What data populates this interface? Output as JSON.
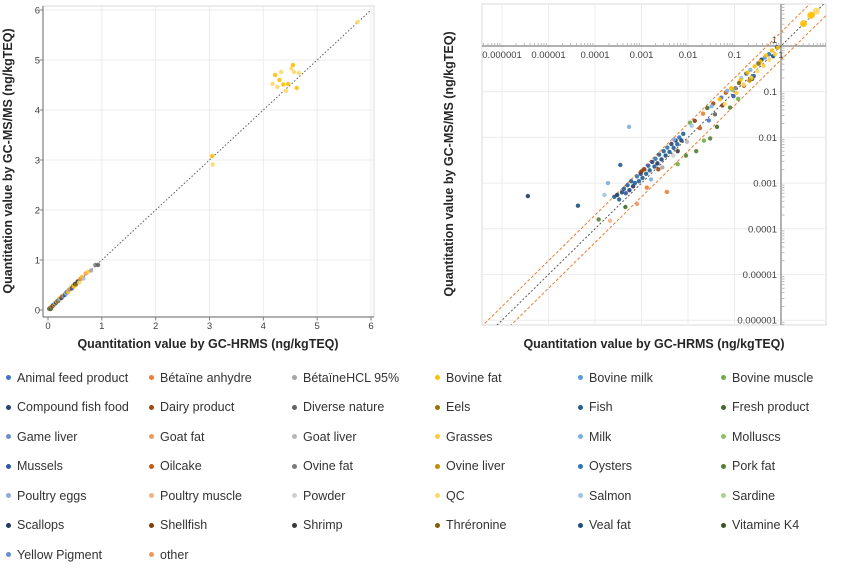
{
  "chart_data": [
    {
      "type": "scatter",
      "scale": "linear",
      "x_title": "Quantitation value by GC-HRMS (ng/kgTEQ)",
      "y_title": "Quantitation value by GC-MS/MS (ng/kgTEQ)",
      "x_ticks": [
        "0",
        "1",
        "2",
        "3",
        "4",
        "5",
        "6"
      ],
      "y_ticks": [
        "0",
        "1",
        "2",
        "3",
        "4",
        "5",
        "6"
      ],
      "xlim": [
        0,
        6
      ],
      "ylim": [
        0,
        6
      ],
      "grid": true,
      "identity_line_color": "#595959",
      "points": [
        [
          5.75,
          5.76,
          "#FFD966"
        ],
        [
          3.05,
          3.08,
          "#FFC000"
        ],
        [
          3.06,
          2.91,
          "#FFD966"
        ],
        [
          4.17,
          4.52,
          "#FFD966"
        ],
        [
          4.22,
          4.7,
          "#FFC000"
        ],
        [
          4.26,
          4.46,
          "#FFD966"
        ],
        [
          4.3,
          4.6,
          "#FFC000"
        ],
        [
          4.33,
          4.76,
          "#FFD966"
        ],
        [
          4.37,
          4.51,
          "#FFC000"
        ],
        [
          4.42,
          4.38,
          "#FFD966"
        ],
        [
          4.46,
          4.52,
          "#FFC000"
        ],
        [
          4.52,
          4.83,
          "#FFD966"
        ],
        [
          4.55,
          4.9,
          "#FFC000"
        ],
        [
          4.57,
          4.76,
          "#FFD966"
        ],
        [
          4.62,
          4.44,
          "#FFC000"
        ],
        [
          4.66,
          4.74,
          "#FFD966"
        ],
        [
          0.02,
          0.02,
          "#ED7D31"
        ],
        [
          0.03,
          0.03,
          "#264478"
        ],
        [
          0.04,
          0.03,
          "#70AD47"
        ],
        [
          0.05,
          0.05,
          "#9E480E"
        ],
        [
          0.05,
          0.02,
          "#43682B"
        ],
        [
          0.06,
          0.06,
          "#4472C4"
        ],
        [
          0.07,
          0.07,
          "#FFC000"
        ],
        [
          0.08,
          0.07,
          "#843C0C"
        ],
        [
          0.09,
          0.09,
          "#636363"
        ],
        [
          0.1,
          0.1,
          "#255E91"
        ],
        [
          0.11,
          0.1,
          "#ED7D31"
        ],
        [
          0.12,
          0.12,
          "#335AA1"
        ],
        [
          0.13,
          0.14,
          "#FFCD33"
        ],
        [
          0.14,
          0.13,
          "#8CC168"
        ],
        [
          0.15,
          0.15,
          "#203864"
        ],
        [
          0.16,
          0.17,
          "#F1975A"
        ],
        [
          0.18,
          0.18,
          "#2E75B6"
        ],
        [
          0.19,
          0.18,
          "#997300"
        ],
        [
          0.2,
          0.21,
          "#5B9BD5"
        ],
        [
          0.22,
          0.22,
          "#A5A5A5"
        ],
        [
          0.23,
          0.24,
          "#FFC000"
        ],
        [
          0.25,
          0.24,
          "#264478"
        ],
        [
          0.26,
          0.27,
          "#C55A11"
        ],
        [
          0.28,
          0.28,
          "#698ED0"
        ],
        [
          0.3,
          0.31,
          "#FFD966"
        ],
        [
          0.31,
          0.3,
          "#255E91"
        ],
        [
          0.33,
          0.34,
          "#7CAFDD"
        ],
        [
          0.34,
          0.33,
          "#8FAADC"
        ],
        [
          0.35,
          0.36,
          "#4472C4"
        ],
        [
          0.37,
          0.36,
          "#FFC000"
        ],
        [
          0.38,
          0.4,
          "#9DC3E6"
        ],
        [
          0.4,
          0.41,
          "#ED7D31"
        ],
        [
          0.42,
          0.44,
          "#FFCD33"
        ],
        [
          0.44,
          0.43,
          "#335AA1"
        ],
        [
          0.46,
          0.47,
          "#636363"
        ],
        [
          0.48,
          0.47,
          "#FFC000"
        ],
        [
          0.5,
          0.52,
          "#203864"
        ],
        [
          0.52,
          0.51,
          "#997300"
        ],
        [
          0.55,
          0.57,
          "#3B3838"
        ],
        [
          0.58,
          0.55,
          "#FFD966"
        ],
        [
          0.6,
          0.62,
          "#ED7D31"
        ],
        [
          0.63,
          0.66,
          "#FFC000"
        ],
        [
          0.66,
          0.63,
          "#B7B7B7"
        ],
        [
          0.7,
          0.73,
          "#F1975A"
        ],
        [
          0.74,
          0.76,
          "#FFCD33"
        ],
        [
          0.8,
          0.79,
          "#A5A5A5"
        ],
        [
          0.88,
          0.9,
          "#7B7B7B"
        ],
        [
          0.93,
          0.9,
          "#636363"
        ]
      ]
    },
    {
      "type": "scatter",
      "scale": "log",
      "x_title": "Quantitation value by GC-HRMS (ng/kgTEQ)",
      "y_title": "Quantitation value by GC-MS/MS (ng/kgTEQ)",
      "x_ticks": [
        "0.000001",
        "0.00001",
        "0.0001",
        "0.001",
        "0.01",
        "0.1",
        "1"
      ],
      "y_ticks": [
        "1",
        "0.1",
        "0.01",
        "0.001",
        "0.0001",
        "0.00001",
        "0.000001"
      ],
      "xlim": [
        1e-06,
        1
      ],
      "ylim": [
        1e-06,
        1
      ],
      "grid": true,
      "identity_line_color": "#595959",
      "bound_lines_color": "#ED7D31",
      "bound_lines_factor": 2,
      "points": [
        [
          3.6e-06,
          0.00052,
          "#203864"
        ],
        [
          4.3e-05,
          0.00032,
          "#1F4E79"
        ],
        [
          0.00019,
          0.001,
          "#7CAFDD"
        ],
        [
          0.00054,
          0.017,
          "#7CAFDD"
        ],
        [
          0.00016,
          0.00055,
          "#9DC3E6"
        ],
        [
          0.0035,
          0.00064,
          "#ED7D31"
        ],
        [
          0.0008,
          0.00035,
          "#F1975A"
        ],
        [
          0.00021,
          0.00015,
          "#F4B183"
        ],
        [
          0.00012,
          0.00016,
          "#538135"
        ],
        [
          0.00045,
          0.0003,
          "#43682B"
        ],
        [
          0.00026,
          0.0005,
          "#255E91"
        ],
        [
          0.0003,
          0.00055,
          "#203864"
        ],
        [
          0.00033,
          0.00044,
          "#255E91"
        ],
        [
          0.00035,
          0.0025,
          "#255E91"
        ],
        [
          0.00038,
          0.00063,
          "#1F4E79"
        ],
        [
          0.00042,
          0.00075,
          "#255E91"
        ],
        [
          0.00046,
          0.0006,
          "#335AA1"
        ],
        [
          0.0005,
          0.0009,
          "#255E91"
        ],
        [
          0.00055,
          0.0007,
          "#264478"
        ],
        [
          0.0006,
          0.0011,
          "#255E91"
        ],
        [
          0.00066,
          0.00085,
          "#203864"
        ],
        [
          0.00072,
          0.001,
          "#255E91"
        ],
        [
          0.0008,
          0.0014,
          "#2E75B6"
        ],
        [
          0.00088,
          0.0011,
          "#255E91"
        ],
        [
          0.00096,
          0.0016,
          "#264478"
        ],
        [
          0.00105,
          0.0013,
          "#255E91"
        ],
        [
          0.00115,
          0.002,
          "#843C0C"
        ],
        [
          0.00126,
          0.0016,
          "#255E91"
        ],
        [
          0.0014,
          0.0024,
          "#335AA1"
        ],
        [
          0.0015,
          0.0019,
          "#255E91"
        ],
        [
          0.0017,
          0.0029,
          "#264478"
        ],
        [
          0.0019,
          0.0023,
          "#255E91"
        ],
        [
          0.002,
          0.0034,
          "#2E75B6"
        ],
        [
          0.0022,
          0.0027,
          "#203864"
        ],
        [
          0.0024,
          0.0042,
          "#255E91"
        ],
        [
          0.0027,
          0.0033,
          "#264478"
        ],
        [
          0.003,
          0.005,
          "#255E91"
        ],
        [
          0.0033,
          0.004,
          "#1F4E79"
        ],
        [
          0.0036,
          0.006,
          "#2E75B6"
        ],
        [
          0.004,
          0.0048,
          "#255E91"
        ],
        [
          0.0044,
          0.0072,
          "#264478"
        ],
        [
          0.0049,
          0.0059,
          "#255E91"
        ],
        [
          0.0054,
          0.0086,
          "#203864"
        ],
        [
          0.0059,
          0.0071,
          "#255E91"
        ],
        [
          0.0065,
          0.01,
          "#2E75B6"
        ],
        [
          0.0072,
          0.0086,
          "#264478"
        ],
        [
          0.0079,
          0.012,
          "#255E91"
        ],
        [
          0.0013,
          0.0008,
          "#ED7D31"
        ],
        [
          0.0023,
          0.002,
          "#9E480E"
        ],
        [
          0.001,
          0.0018,
          "#843C0C"
        ],
        [
          0.014,
          0.023,
          "#843C0C"
        ],
        [
          0.018,
          0.016,
          "#C55A11"
        ],
        [
          0.035,
          0.055,
          "#9E480E"
        ],
        [
          0.055,
          0.05,
          "#843C0C"
        ],
        [
          0.021,
          0.033,
          "#ED7D31"
        ],
        [
          0.065,
          0.095,
          "#C55A11"
        ],
        [
          0.16,
          0.135,
          "#9E480E"
        ],
        [
          0.0028,
          0.0022,
          "#A5A5A5"
        ],
        [
          0.0048,
          0.004,
          "#D0CECE"
        ],
        [
          0.0095,
          0.008,
          "#B7B7B7"
        ],
        [
          0.038,
          0.032,
          "#636363"
        ],
        [
          0.105,
          0.12,
          "#7B7B7B"
        ],
        [
          0.006,
          0.005,
          "#3B3838"
        ],
        [
          0.015,
          0.005,
          "#538135"
        ],
        [
          0.022,
          0.0085,
          "#70AD47"
        ],
        [
          0.03,
          0.0095,
          "#538135"
        ],
        [
          0.042,
          0.017,
          "#43682B"
        ],
        [
          0.006,
          0.0026,
          "#70AD47"
        ],
        [
          0.009,
          0.004,
          "#538135"
        ],
        [
          0.011,
          0.021,
          "#70AD47"
        ],
        [
          0.026,
          0.044,
          "#43682B"
        ],
        [
          0.08,
          0.045,
          "#538135"
        ],
        [
          0.12,
          0.07,
          "#70AD47"
        ],
        [
          0.24,
          0.19,
          "#43682B"
        ],
        [
          0.09,
          0.11,
          "#8CC168"
        ],
        [
          0.0016,
          0.0012,
          "#7CAFDD"
        ],
        [
          0.005,
          0.009,
          "#8FAADC"
        ],
        [
          0.012,
          0.018,
          "#9DC3E6"
        ],
        [
          0.032,
          0.048,
          "#7CAFDD"
        ],
        [
          0.07,
          0.105,
          "#8FAADC"
        ],
        [
          0.14,
          0.2,
          "#9DC3E6"
        ],
        [
          0.22,
          0.3,
          "#7CAFDD"
        ],
        [
          0.32,
          0.42,
          "#8FAADC"
        ],
        [
          0.45,
          0.56,
          "#5B9BD5"
        ],
        [
          0.028,
          0.0235,
          "#4472C4"
        ],
        [
          0.052,
          0.074,
          "#4472C4"
        ],
        [
          0.095,
          0.08,
          "#335AA1"
        ],
        [
          0.18,
          0.25,
          "#264478"
        ],
        [
          0.26,
          0.22,
          "#255E91"
        ],
        [
          0.38,
          0.5,
          "#203864"
        ],
        [
          0.55,
          0.66,
          "#2E75B6"
        ],
        [
          0.68,
          0.6,
          "#1F4E79"
        ],
        [
          0.82,
          0.95,
          "#335AA1"
        ],
        [
          0.048,
          0.068,
          "#FFC000"
        ],
        [
          0.062,
          0.054,
          "#FFD966"
        ],
        [
          0.085,
          0.12,
          "#FFC000"
        ],
        [
          0.11,
          0.094,
          "#FFCD33"
        ],
        [
          0.135,
          0.18,
          "#FFC000"
        ],
        [
          0.16,
          0.142,
          "#FFD966"
        ],
        [
          0.19,
          0.26,
          "#FFC000"
        ],
        [
          0.23,
          0.2,
          "#FFCD33"
        ],
        [
          0.27,
          0.36,
          "#FFC000"
        ],
        [
          0.31,
          0.28,
          "#FFD966"
        ],
        [
          0.36,
          0.46,
          "#FFC000"
        ],
        [
          0.42,
          0.37,
          "#FFCD33"
        ],
        [
          0.48,
          0.62,
          "#FFC000"
        ],
        [
          0.56,
          0.5,
          "#FFD966"
        ],
        [
          0.64,
          0.8,
          "#FFC000"
        ],
        [
          0.74,
          0.66,
          "#FFCD33"
        ],
        [
          0.86,
          0.92,
          "#FFC000"
        ],
        [
          0.21,
          0.175,
          "#BF8F00"
        ],
        [
          0.33,
          0.41,
          "#997300"
        ],
        [
          0.125,
          0.155,
          "#7F6000"
        ],
        [
          3.05,
          3.08,
          "#FFC000",
          3.5
        ],
        [
          4.3,
          4.6,
          "#FFD966",
          3.5
        ],
        [
          4.5,
          4.75,
          "#FFC000",
          3.5
        ],
        [
          5.75,
          5.8,
          "#FFD966",
          3.5
        ]
      ]
    }
  ],
  "legend": {
    "items": [
      {
        "label": "Animal feed product",
        "color": "#4472C4"
      },
      {
        "label": "Bétaïne anhydre",
        "color": "#ED7D31"
      },
      {
        "label": "BétaïneHCL 95%",
        "color": "#A5A5A5"
      },
      {
        "label": "Bovine fat",
        "color": "#FFC000"
      },
      {
        "label": "Bovine milk",
        "color": "#5B9BD5"
      },
      {
        "label": "Bovine muscle",
        "color": "#70AD47"
      },
      {
        "label": "Compound fish food",
        "color": "#264478"
      },
      {
        "label": "Dairy product",
        "color": "#9E480E"
      },
      {
        "label": "Diverse nature",
        "color": "#636363"
      },
      {
        "label": "Eels",
        "color": "#997300"
      },
      {
        "label": "Fish",
        "color": "#255E91"
      },
      {
        "label": "Fresh product",
        "color": "#43682B"
      },
      {
        "label": "Game liver",
        "color": "#698ED0"
      },
      {
        "label": "Goat fat",
        "color": "#F1975A"
      },
      {
        "label": "Goat liver",
        "color": "#B7B7B7"
      },
      {
        "label": "Grasses",
        "color": "#FFCD33"
      },
      {
        "label": "Milk",
        "color": "#7CAFDD"
      },
      {
        "label": "Molluscs",
        "color": "#8CC168"
      },
      {
        "label": "Mussels",
        "color": "#335AA1"
      },
      {
        "label": "Oilcake",
        "color": "#C55A11"
      },
      {
        "label": "Ovine fat",
        "color": "#7B7B7B"
      },
      {
        "label": "Ovine liver",
        "color": "#BF8F00"
      },
      {
        "label": "Oysters",
        "color": "#2E75B6"
      },
      {
        "label": "Pork fat",
        "color": "#538135"
      },
      {
        "label": "Poultry eggs",
        "color": "#8FAADC"
      },
      {
        "label": "Poultry muscle",
        "color": "#F4B183"
      },
      {
        "label": "Powder",
        "color": "#D0CECE"
      },
      {
        "label": "QC",
        "color": "#FFD966"
      },
      {
        "label": "Salmon",
        "color": "#9DC3E6"
      },
      {
        "label": "Sardine",
        "color": "#A9D18E"
      },
      {
        "label": "Scallops",
        "color": "#203864"
      },
      {
        "label": "Shellfish",
        "color": "#843C0C"
      },
      {
        "label": "Shrimp",
        "color": "#3B3838"
      },
      {
        "label": "Thréronine",
        "color": "#7F6000"
      },
      {
        "label": "Veal fat",
        "color": "#1F4E79"
      },
      {
        "label": "Vitamine K4",
        "color": "#375623"
      },
      {
        "label": "Yellow Pigment",
        "color": "#698ED0"
      },
      {
        "label": "other",
        "color": "#F1975A"
      }
    ]
  }
}
